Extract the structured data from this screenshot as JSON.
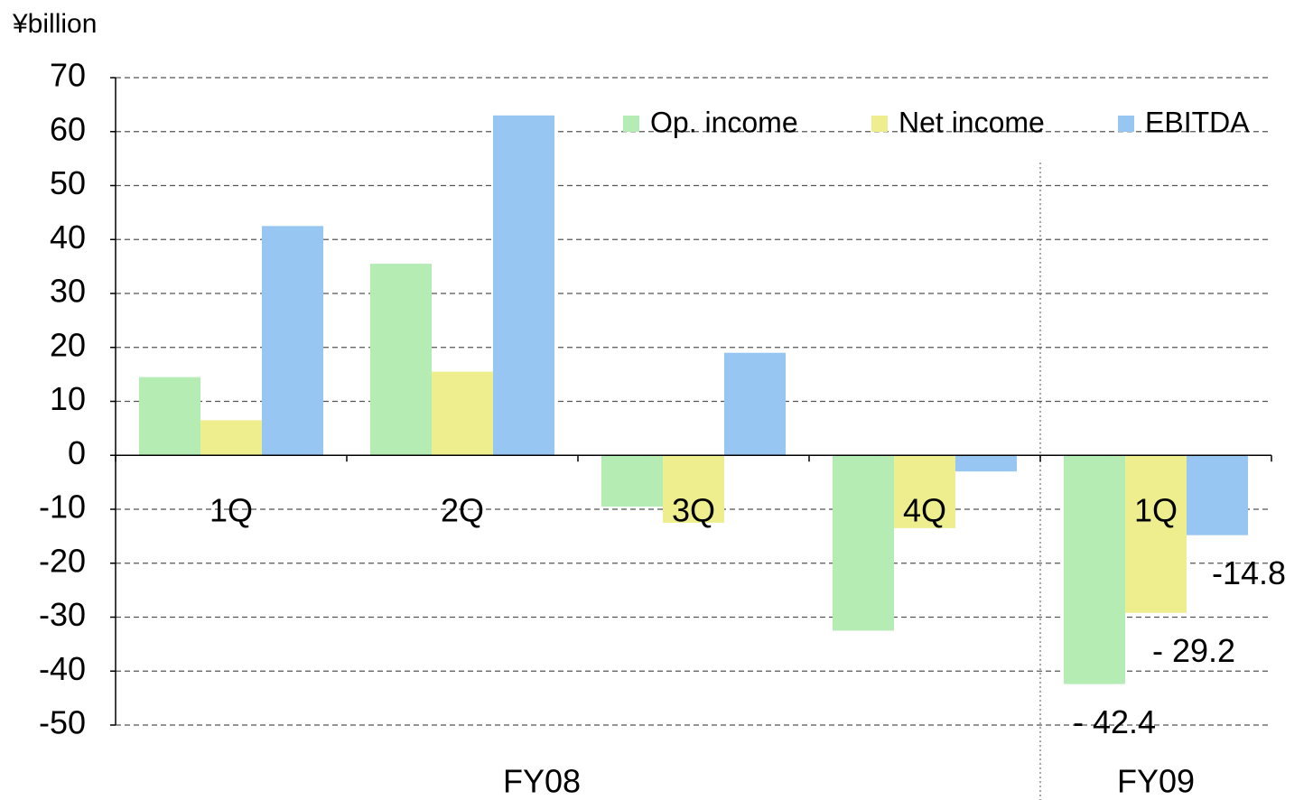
{
  "chart_data": {
    "type": "bar",
    "y_unit": "¥billion",
    "categories": [
      "1Q",
      "2Q",
      "3Q",
      "4Q",
      "1Q"
    ],
    "fiscal_years": [
      "FY08",
      "FY09"
    ],
    "series": [
      {
        "name": "Op. income",
        "color": "#b4ecb4",
        "values": [
          14.5,
          35.5,
          -9.5,
          -32.5,
          -42.4
        ],
        "value_labels": [
          null,
          null,
          null,
          null,
          "- 42.4"
        ]
      },
      {
        "name": "Net income",
        "color": "#eeee8e",
        "values": [
          6.5,
          15.5,
          -12.5,
          -13.5,
          -29.2
        ],
        "value_labels": [
          null,
          null,
          null,
          null,
          "- 29.2"
        ]
      },
      {
        "name": "EBITDA",
        "color": "#98c6f2",
        "values": [
          42.5,
          63,
          19,
          -3,
          -14.8
        ],
        "value_labels": [
          null,
          null,
          null,
          null,
          "-14.8"
        ]
      }
    ],
    "ylim": [
      -50,
      70
    ],
    "yticks": [
      -50,
      -40,
      -30,
      -20,
      -10,
      0,
      10,
      20,
      30,
      40,
      50,
      60,
      70
    ],
    "grid": true,
    "legend": "top-right"
  }
}
